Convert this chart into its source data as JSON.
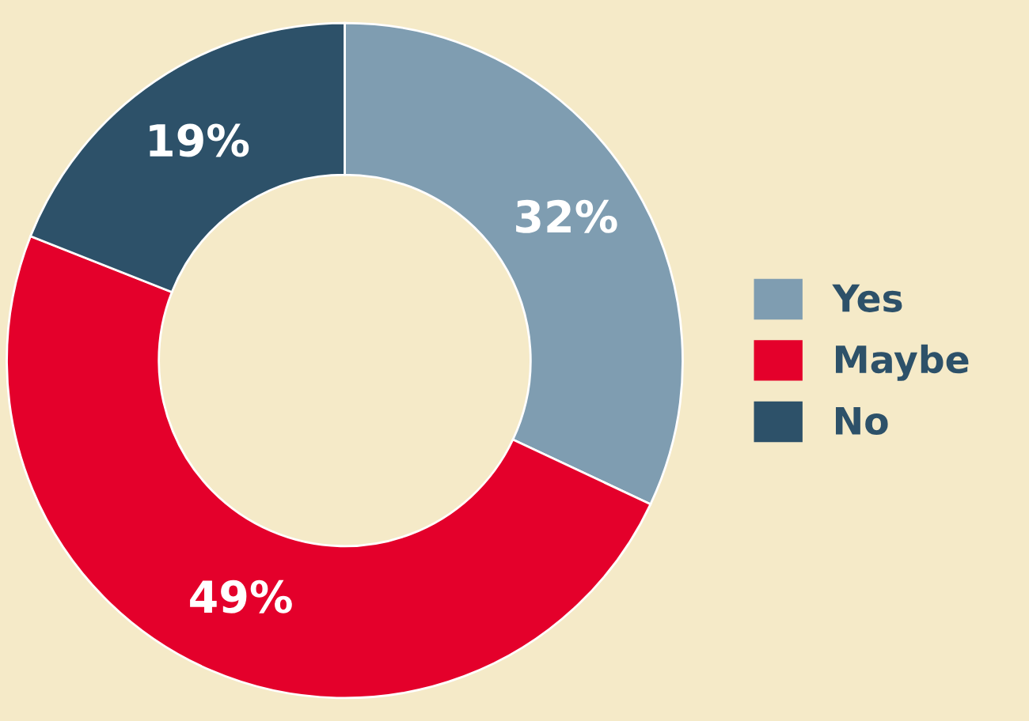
{
  "chart_data": {
    "type": "donut",
    "categories": [
      "Yes",
      "Maybe",
      "No"
    ],
    "values": [
      32,
      49,
      19
    ],
    "colors": [
      "#7f9db1",
      "#e4002b",
      "#2d5169"
    ],
    "value_labels": [
      "32%",
      "49%",
      "19%"
    ],
    "legend": "right"
  }
}
